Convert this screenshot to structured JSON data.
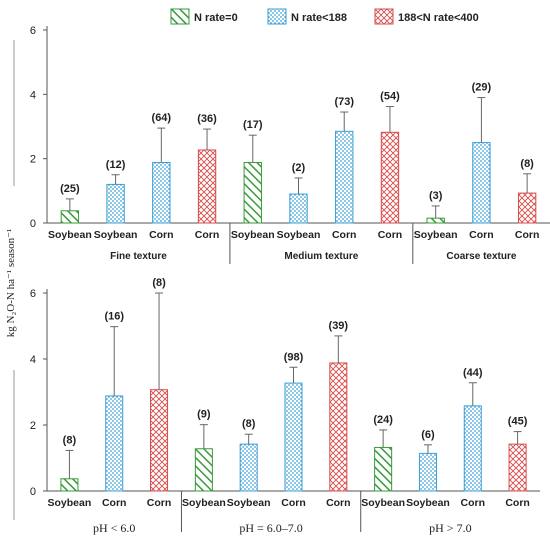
{
  "ylabel": "kg N₂O-N ha⁻¹ season⁻¹",
  "legend": [
    {
      "label": "N rate=0",
      "pattern": "hatch",
      "color": "#3a9a3a"
    },
    {
      "label": "N rate<188",
      "pattern": "dots",
      "color": "#3a9fd6"
    },
    {
      "label": "188<N rate<400",
      "pattern": "cross",
      "color": "#d94a4a"
    }
  ],
  "chart_data": [
    {
      "type": "bar",
      "ylim": [
        0,
        6
      ],
      "yticks": [
        0,
        2,
        4,
        6
      ],
      "groups": [
        {
          "label": "Fine texture",
          "size": 4
        },
        {
          "label": "Medium texture",
          "size": 4
        },
        {
          "label": "Coarse texture",
          "size": 3
        }
      ],
      "bars": [
        {
          "crop": "Soybean",
          "series": "N rate=0",
          "value": 0.38,
          "err": 0.37,
          "n": "(25)"
        },
        {
          "crop": "Soybean",
          "series": "N rate<188",
          "value": 1.2,
          "err": 0.3,
          "n": "(12)"
        },
        {
          "crop": "Corn",
          "series": "N rate<188",
          "value": 1.88,
          "err": 1.07,
          "n": "(64)"
        },
        {
          "crop": "Corn",
          "series": "188<N rate<400",
          "value": 2.27,
          "err": 0.65,
          "n": "(36)"
        },
        {
          "crop": "Soybean",
          "series": "N rate=0",
          "value": 1.88,
          "err": 0.85,
          "n": "(17)"
        },
        {
          "crop": "Soybean",
          "series": "N rate<188",
          "value": 0.9,
          "err": 0.5,
          "n": "(2)"
        },
        {
          "crop": "Corn",
          "series": "N rate<188",
          "value": 2.85,
          "err": 0.6,
          "n": "(73)"
        },
        {
          "crop": "Corn",
          "series": "188<N rate<400",
          "value": 2.82,
          "err": 0.8,
          "n": "(54)"
        },
        {
          "crop": "Soybean",
          "series": "N rate=0",
          "value": 0.15,
          "err": 0.38,
          "n": "(3)"
        },
        {
          "crop": "Corn",
          "series": "N rate<188",
          "value": 2.5,
          "err": 1.4,
          "n": "(29)"
        },
        {
          "crop": "Corn",
          "series": "188<N rate<400",
          "value": 0.93,
          "err": 0.6,
          "n": "(8)"
        }
      ]
    },
    {
      "type": "bar",
      "ylim": [
        0,
        6
      ],
      "yticks": [
        0,
        2,
        4,
        6
      ],
      "groups": [
        {
          "label": "pH < 6.0",
          "size": 3
        },
        {
          "label": "pH = 6.0–7.0",
          "size": 4
        },
        {
          "label": "pH > 7.0",
          "size": 4
        }
      ],
      "bars": [
        {
          "crop": "Soybean",
          "series": "N rate=0",
          "value": 0.37,
          "err": 0.86,
          "n": "(8)"
        },
        {
          "crop": "Corn",
          "series": "N rate<188",
          "value": 2.88,
          "err": 2.1,
          "n": "(16)"
        },
        {
          "crop": "Corn",
          "series": "188<N rate<400",
          "value": 3.07,
          "err": 2.93,
          "n": "(8)"
        },
        {
          "crop": "Soybean",
          "series": "N rate=0",
          "value": 1.28,
          "err": 0.73,
          "n": "(9)"
        },
        {
          "crop": "Soybean",
          "series": "N rate<188",
          "value": 1.42,
          "err": 0.3,
          "n": "(8)"
        },
        {
          "crop": "Corn",
          "series": "N rate<188",
          "value": 3.27,
          "err": 0.48,
          "n": "(98)"
        },
        {
          "crop": "Corn",
          "series": "188<N rate<400",
          "value": 3.88,
          "err": 0.82,
          "n": "(39)"
        },
        {
          "crop": "Soybean",
          "series": "N rate=0",
          "value": 1.32,
          "err": 0.53,
          "n": "(24)"
        },
        {
          "crop": "Soybean",
          "series": "N rate<188",
          "value": 1.14,
          "err": 0.26,
          "n": "(6)"
        },
        {
          "crop": "Corn",
          "series": "N rate<188",
          "value": 2.58,
          "err": 0.7,
          "n": "(44)"
        },
        {
          "crop": "Corn",
          "series": "188<N rate<400",
          "value": 1.42,
          "err": 0.38,
          "n": "(45)"
        }
      ]
    }
  ]
}
